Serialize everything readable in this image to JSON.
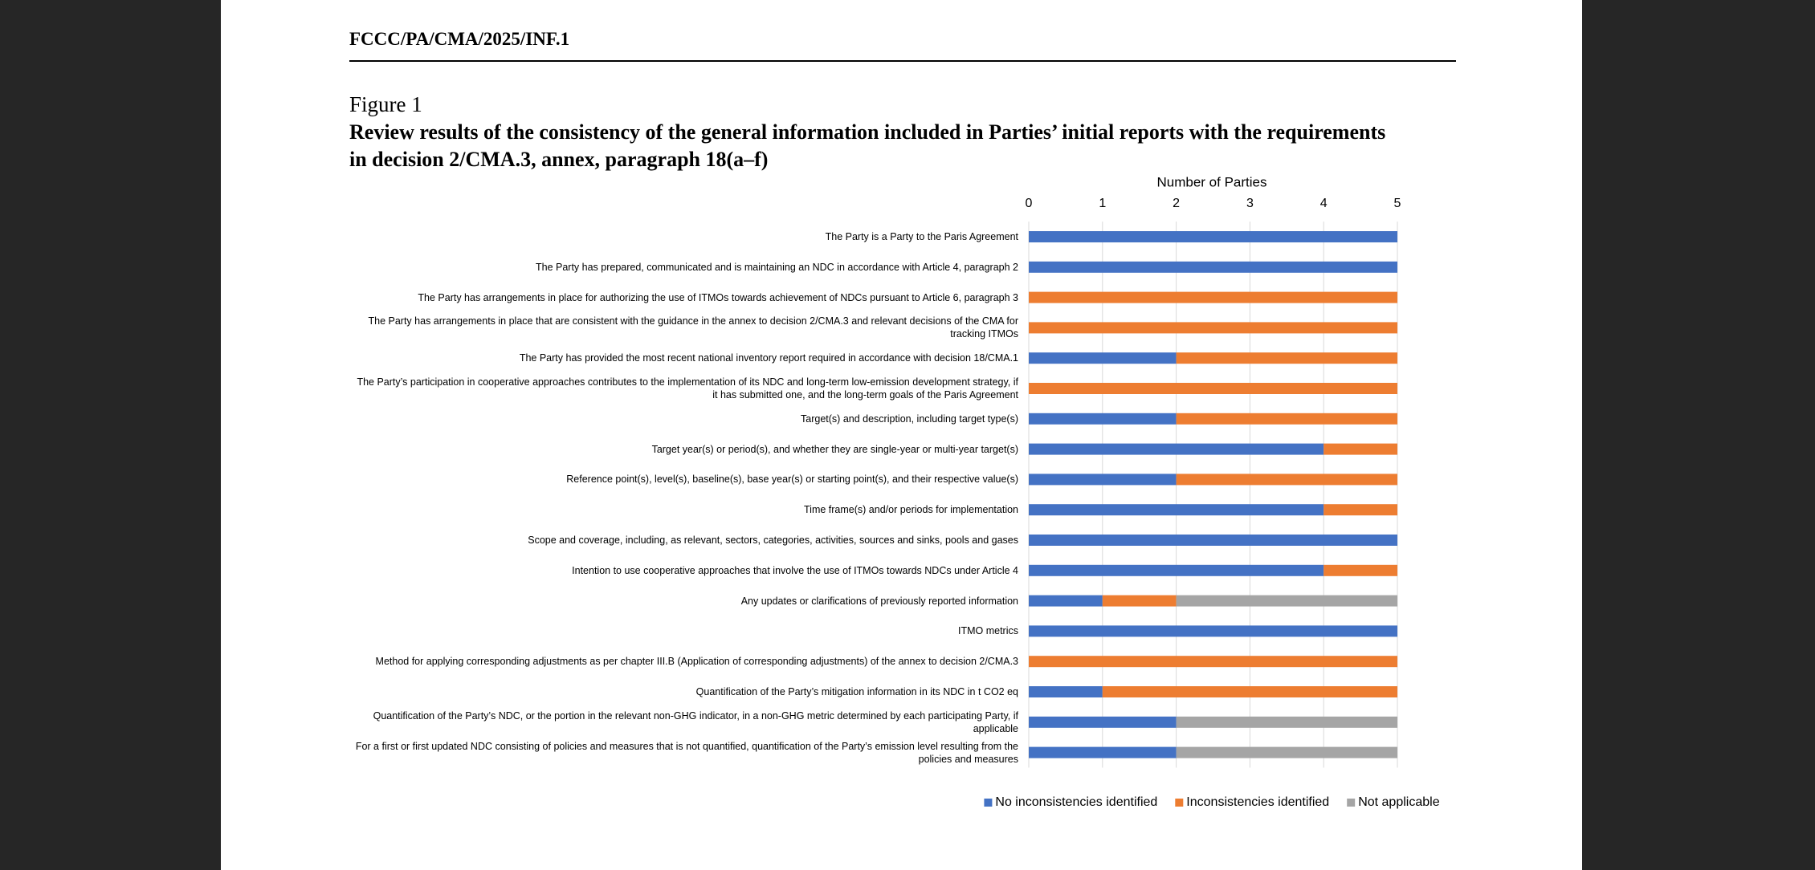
{
  "header": "FCCC/PA/CMA/2025/INF.1",
  "figure_label": "Figure 1",
  "chart_data": {
    "type": "stacked-barh",
    "title": "Review results of the consistency of the general information included in Parties’ initial reports with the requirements in decision 2/CMA.3, annex, paragraph 18(a–f)",
    "x_label": "Number of Parties",
    "xlim": [
      0,
      5
    ],
    "xticks": [
      0,
      1,
      2,
      3,
      4,
      5
    ],
    "grid": true,
    "legend": "bottom",
    "categories": [
      "The Party is a Party to the Paris Agreement",
      "The Party has prepared, communicated and is maintaining an NDC in accordance with Article 4, paragraph 2",
      "The Party has arrangements in place for authorizing the use of ITMOs towards achievement of NDCs pursuant to Article 6, paragraph 3",
      "The Party has arrangements in place that are consistent with the guidance in the annex to decision 2/CMA.3 and relevant decisions of the CMA for tracking ITMOs",
      "The Party has provided the most recent national inventory report required in accordance with decision 18/CMA.1",
      "The Party’s participation in cooperative approaches contributes to the implementation of its NDC and long-term low-emission development strategy, if it has submitted one, and the long-term goals of the Paris Agreement",
      "Target(s) and description, including target type(s)",
      "Target year(s) or period(s), and whether they are single-year or multi-year target(s)",
      "Reference point(s), level(s), baseline(s), base year(s) or starting point(s), and their respective value(s)",
      "Time frame(s) and/or periods for implementation",
      "Scope and coverage, including, as relevant, sectors, categories, activities, sources and sinks, pools and gases",
      "Intention to use cooperative approaches that involve the use of ITMOs towards NDCs under Article 4",
      "Any updates or clarifications of previously reported information",
      "ITMO metrics",
      "Method for applying corresponding adjustments as per chapter III.B (Application of corresponding adjustments) of the annex to decision 2/CMA.3",
      "Quantification of the Party’s mitigation information in its NDC in t CO2 eq",
      "Quantification of the Party’s NDC, or the portion in the relevant non-GHG indicator, in a non-GHG metric determined by each participating Party, if applicable",
      "For a first or first updated NDC consisting of policies and measures that is not quantified, quantification of the Party’s emission level resulting from the policies and measures"
    ],
    "series": [
      {
        "name": "No inconsistencies identified",
        "color": "#4472c4",
        "values": [
          5,
          5,
          0,
          0,
          2,
          0,
          2,
          4,
          2,
          4,
          5,
          4,
          1,
          5,
          0,
          1,
          2,
          2
        ]
      },
      {
        "name": "Inconsistencies identified",
        "color": "#ed7d31",
        "values": [
          0,
          0,
          5,
          5,
          3,
          5,
          3,
          1,
          3,
          1,
          0,
          1,
          1,
          0,
          5,
          4,
          0,
          0
        ]
      },
      {
        "name": "Not applicable",
        "color": "#a5a5a5",
        "values": [
          0,
          0,
          0,
          0,
          0,
          0,
          0,
          0,
          0,
          0,
          0,
          0,
          3,
          0,
          0,
          0,
          3,
          3
        ]
      }
    ]
  }
}
